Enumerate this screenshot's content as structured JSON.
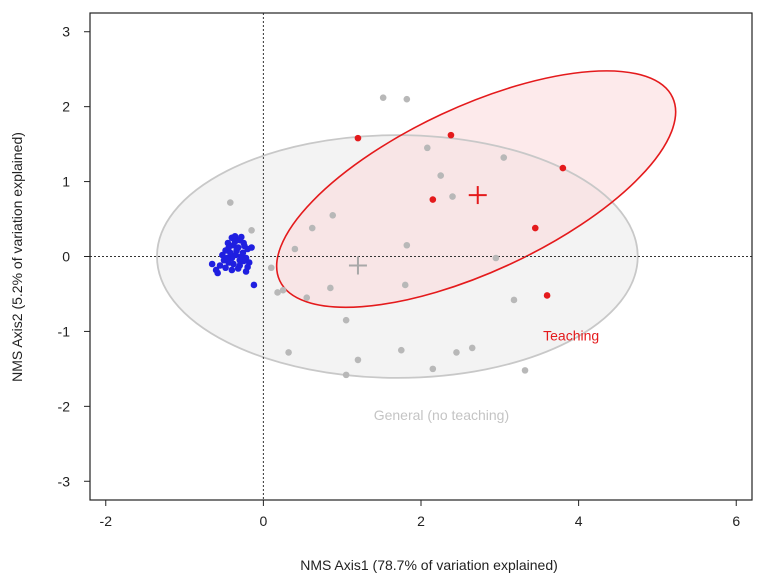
{
  "chart_data": {
    "type": "scatter",
    "title": "",
    "xlabel": "NMS Axis1 (78.7% of variation explained)",
    "ylabel": "NMS Axis2 (5.2% of variation explained)",
    "xlim": [
      -2.2,
      6.2
    ],
    "ylim": [
      -3.25,
      3.25
    ],
    "xticks": [
      -2,
      0,
      2,
      4,
      6
    ],
    "yticks": [
      -3,
      -2,
      -1,
      0,
      1,
      2,
      3
    ],
    "reference_lines": {
      "x": 0,
      "y": 0,
      "style": "dotted"
    },
    "grid": false,
    "series": [
      {
        "color": "#1f1fe0",
        "points": [
          [
            -0.4,
            0.25
          ],
          [
            -0.36,
            0.27
          ],
          [
            -0.3,
            0.22
          ],
          [
            -0.45,
            0.18
          ],
          [
            -0.38,
            0.15
          ],
          [
            -0.32,
            0.12
          ],
          [
            -0.25,
            0.18
          ],
          [
            -0.2,
            0.1
          ],
          [
            -0.48,
            0.08
          ],
          [
            -0.42,
            0.05
          ],
          [
            -0.35,
            0.02
          ],
          [
            -0.28,
            0.0
          ],
          [
            -0.22,
            -0.02
          ],
          [
            -0.5,
            -0.05
          ],
          [
            -0.44,
            -0.08
          ],
          [
            -0.38,
            -0.1
          ],
          [
            -0.3,
            -0.12
          ],
          [
            -0.25,
            -0.06
          ],
          [
            -0.55,
            -0.12
          ],
          [
            -0.6,
            -0.18
          ],
          [
            -0.48,
            -0.15
          ],
          [
            -0.4,
            -0.02
          ],
          [
            -0.34,
            0.08
          ],
          [
            -0.3,
            -0.05
          ],
          [
            -0.26,
            0.05
          ],
          [
            -0.15,
            0.12
          ],
          [
            -0.18,
            -0.08
          ],
          [
            -0.22,
            -0.2
          ],
          [
            -0.12,
            -0.38
          ],
          [
            -0.58,
            -0.22
          ],
          [
            -0.65,
            -0.1
          ],
          [
            -0.44,
            0.12
          ],
          [
            -0.36,
            0.2
          ],
          [
            -0.28,
            0.26
          ],
          [
            -0.2,
            -0.14
          ],
          [
            -0.52,
            0.02
          ],
          [
            -0.32,
            -0.16
          ],
          [
            -0.4,
            -0.18
          ],
          [
            -0.46,
            -0.02
          ],
          [
            -0.24,
            0.14
          ]
        ]
      },
      {
        "color": "#e41a1c",
        "points": [
          [
            1.2,
            1.58
          ],
          [
            2.38,
            1.62
          ],
          [
            3.8,
            1.18
          ],
          [
            2.15,
            0.76
          ],
          [
            3.45,
            0.38
          ],
          [
            3.6,
            -0.52
          ]
        ]
      },
      {
        "color": "#b8b8b8",
        "points": [
          [
            1.52,
            2.12
          ],
          [
            1.82,
            2.1
          ],
          [
            2.08,
            1.45
          ],
          [
            2.25,
            1.08
          ],
          [
            3.05,
            1.32
          ],
          [
            2.4,
            0.8
          ],
          [
            -0.42,
            0.72
          ],
          [
            -0.15,
            0.35
          ],
          [
            0.4,
            0.1
          ],
          [
            0.62,
            0.38
          ],
          [
            0.88,
            0.55
          ],
          [
            0.1,
            -0.15
          ],
          [
            0.25,
            -0.45
          ],
          [
            0.18,
            -0.48
          ],
          [
            0.55,
            -0.55
          ],
          [
            0.85,
            -0.42
          ],
          [
            1.05,
            -0.85
          ],
          [
            1.8,
            -0.38
          ],
          [
            1.82,
            0.15
          ],
          [
            2.95,
            -0.02
          ],
          [
            3.18,
            -0.58
          ],
          [
            0.32,
            -1.28
          ],
          [
            1.2,
            -1.38
          ],
          [
            1.75,
            -1.25
          ],
          [
            2.45,
            -1.28
          ],
          [
            2.65,
            -1.22
          ],
          [
            1.05,
            -1.58
          ],
          [
            2.15,
            -1.5
          ],
          [
            3.32,
            -1.52
          ]
        ]
      }
    ],
    "centroids": [
      {
        "x": 1.2,
        "y": -0.12,
        "color": "#a8a8a8"
      },
      {
        "x": 2.72,
        "y": 0.82,
        "color": "#e41a1c"
      }
    ],
    "ellipses": [
      {
        "label": "General (no teaching)",
        "cx": 1.7,
        "cy": 0.0,
        "rx": 3.05,
        "ry": 1.62,
        "angle_deg": 0,
        "stroke": "#c8c8c8",
        "fill": "#f2f2f2"
      },
      {
        "label": "Teaching",
        "cx": 2.7,
        "cy": 0.9,
        "rx": 2.75,
        "ry": 1.1,
        "angle_deg": -25,
        "stroke": "#e41a1c",
        "fill": "#fbd9da"
      }
    ],
    "annotations": [
      {
        "text": "Teaching",
        "x": 3.55,
        "y": -1.12,
        "color": "#e41a1c"
      },
      {
        "text": "General (no teaching)",
        "x": 1.4,
        "y": -2.18,
        "color": "#c4c4c4"
      }
    ]
  }
}
